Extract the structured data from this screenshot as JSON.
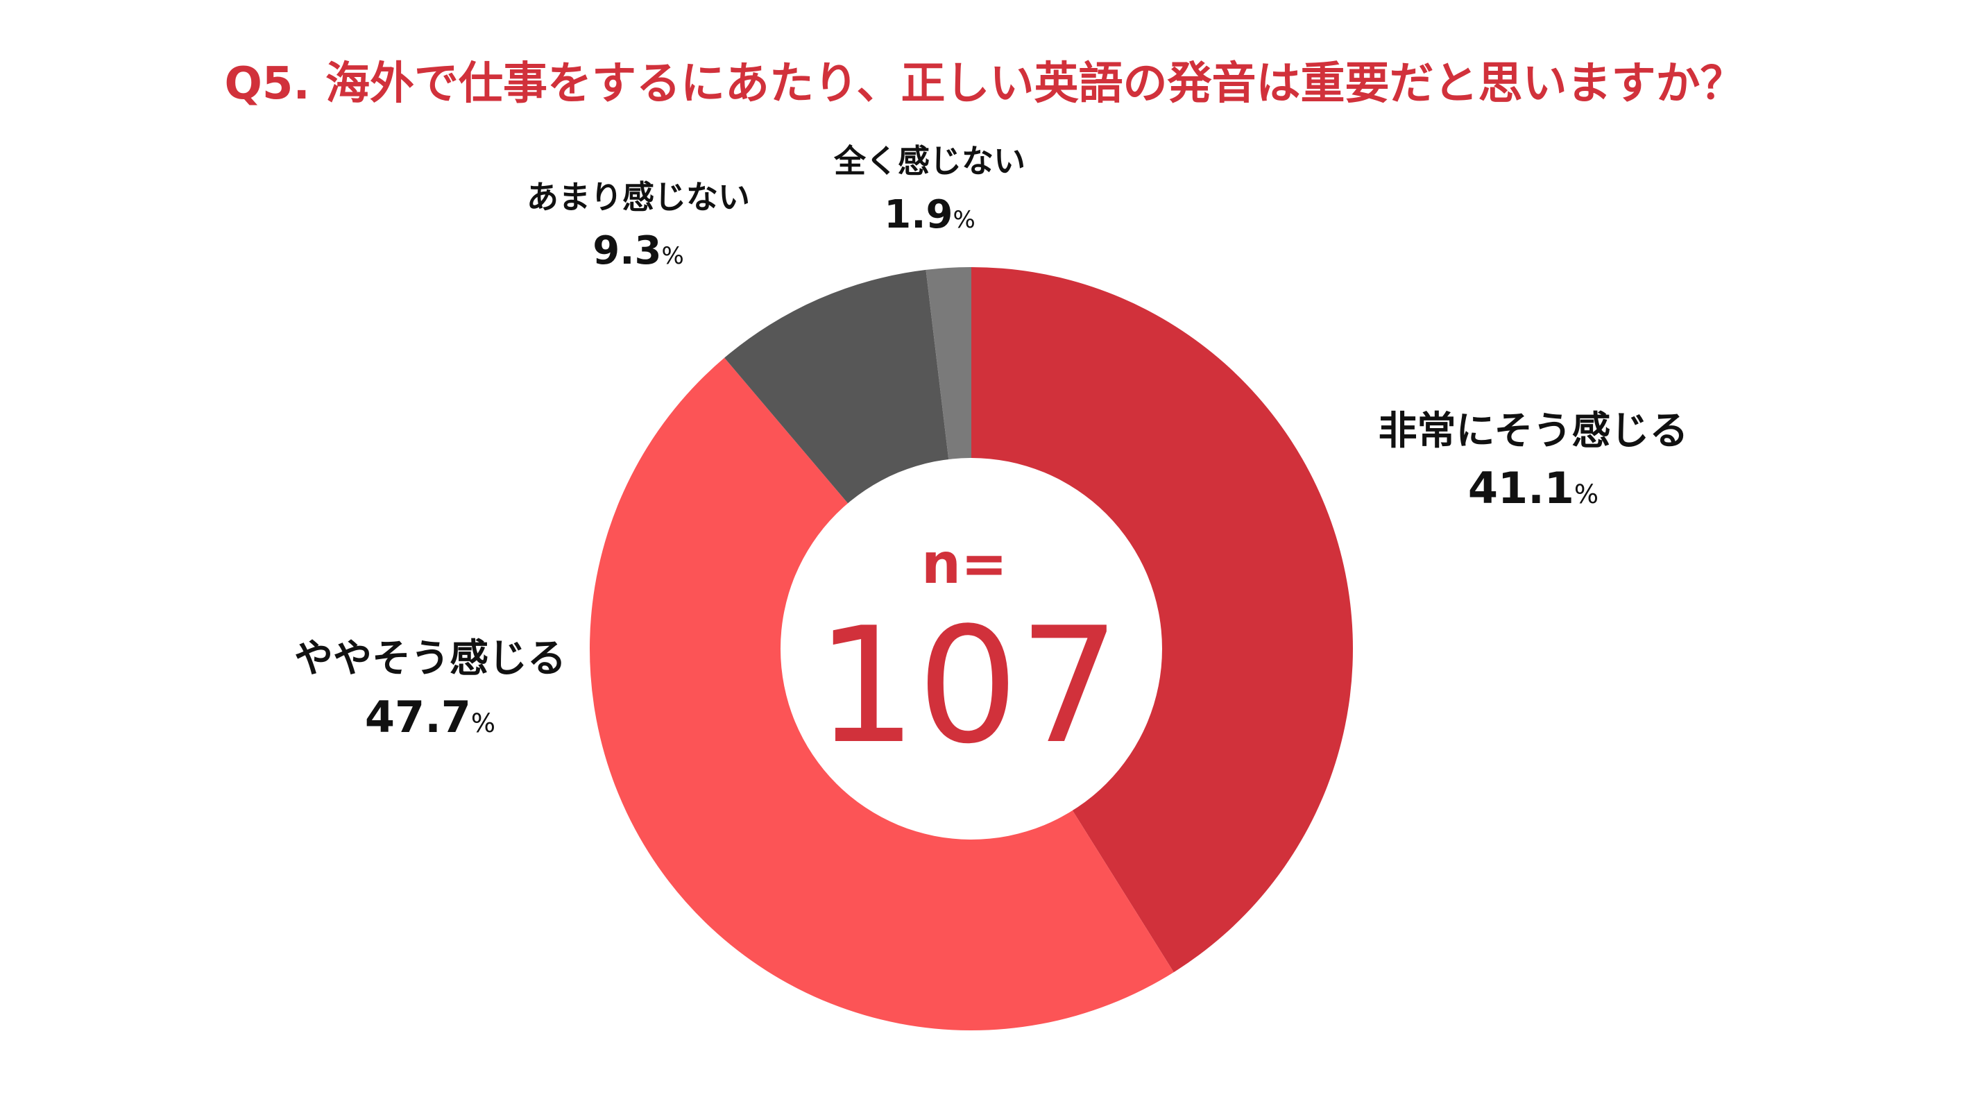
{
  "chart_data": {
    "type": "pie",
    "style": "donut",
    "title": "Q5. 海外で仕事をするにあたり、正しい英語の発音は重要だと思いますか？",
    "center": {
      "prefix": "n=",
      "value": "107"
    },
    "percent_suffix": "%",
    "slices": [
      {
        "label": "非常にそう感じる",
        "value": 41.1,
        "display": "41.1",
        "color": "#d1313b",
        "label_size": "large"
      },
      {
        "label": "ややそう感じる",
        "value": 47.7,
        "display": "47.7",
        "color": "#fc5456",
        "label_size": "large"
      },
      {
        "label": "あまり感じない",
        "value": 9.3,
        "display": "9.3",
        "color": "#575757",
        "label_size": "small"
      },
      {
        "label": "全く感じない",
        "value": 1.9,
        "display": "1.9",
        "color": "#7a7a7a",
        "label_size": "small"
      }
    ],
    "colors": {
      "title": "#d1313b",
      "center_text": "#d1313b",
      "labels": "#111111",
      "background": "#ffffff"
    }
  }
}
